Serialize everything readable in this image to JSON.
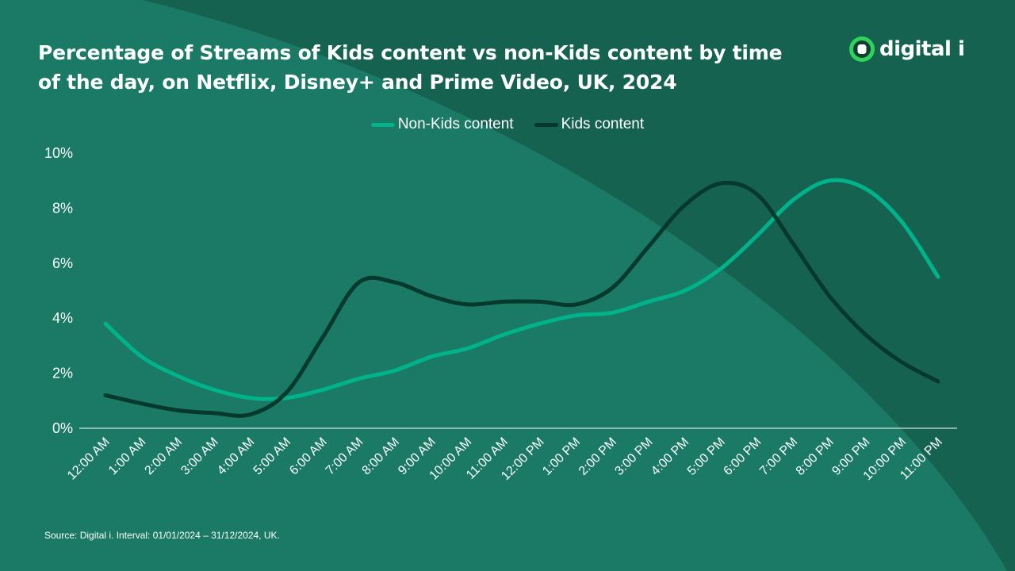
{
  "colors": {
    "background_dark": "#166250",
    "background_light": "#1A7A66",
    "non_kids": "#00B38A",
    "kids": "#05392E",
    "text": "#FFFFFF",
    "logo_green": "#2FD35A"
  },
  "logo": {
    "text": "digital i",
    "icon": "digital-i-logo-icon"
  },
  "source": "Source: Digital i. Interval: 01/01/2024 – 31/12/2024, UK.",
  "chart_data": {
    "type": "line",
    "title": "Percentage of Streams of Kids content vs non-Kids content by time of the day, on Netflix, Disney+ and Prime Video, UK, 2024",
    "xlabel": "",
    "ylabel": "",
    "ylim": [
      0,
      10
    ],
    "y_ticks": [
      "0%",
      "2%",
      "4%",
      "6%",
      "8%",
      "10%"
    ],
    "y_tick_values": [
      0,
      2,
      4,
      6,
      8,
      10
    ],
    "grid": false,
    "legend_position": "top-center",
    "categories": [
      "12:00 AM",
      "1:00 AM",
      "2:00 AM",
      "3:00 AM",
      "4:00 AM",
      "5:00 AM",
      "6:00 AM",
      "7:00 AM",
      "8:00 AM",
      "9:00 AM",
      "10:00 AM",
      "11:00 AM",
      "12:00 PM",
      "1:00 PM",
      "2:00 PM",
      "3:00 PM",
      "4:00 PM",
      "5:00 PM",
      "6:00 PM",
      "7:00 PM",
      "8:00 PM",
      "9:00 PM",
      "10:00 PM",
      "11:00 PM"
    ],
    "series": [
      {
        "name": "Non-Kids content",
        "color": "#00B38A",
        "values": [
          3.8,
          2.6,
          1.9,
          1.4,
          1.1,
          1.1,
          1.4,
          1.8,
          2.1,
          2.6,
          2.9,
          3.4,
          3.8,
          4.1,
          4.2,
          4.6,
          5.0,
          5.8,
          7.0,
          8.3,
          9.0,
          8.7,
          7.5,
          5.5
        ]
      },
      {
        "name": "Kids content",
        "color": "#05392E",
        "values": [
          1.2,
          0.9,
          0.65,
          0.55,
          0.5,
          1.3,
          3.3,
          5.3,
          5.3,
          4.8,
          4.5,
          4.6,
          4.6,
          4.5,
          5.1,
          6.6,
          8.1,
          8.9,
          8.5,
          6.7,
          4.8,
          3.4,
          2.4,
          1.7
        ]
      }
    ]
  }
}
